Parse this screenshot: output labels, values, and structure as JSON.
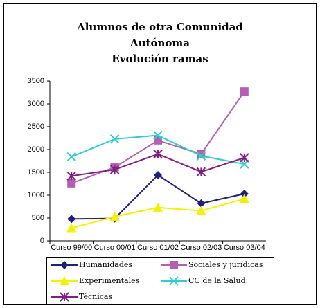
{
  "chart_data": {
    "type": "line",
    "title": [
      "Alumnos de otra Comunidad",
      "Autónoma",
      "Evolución ramas"
    ],
    "categories": [
      "Curso 99/00",
      "Curso 00/01",
      "Curso 01/02",
      "Curso 02/03",
      "Curso 03/04"
    ],
    "series": [
      {
        "name": "Humanidades",
        "color": "#1f1f7a",
        "marker": "diamond",
        "values": [
          480,
          490,
          1440,
          820,
          1030
        ]
      },
      {
        "name": "Sociales y jurídicas",
        "color": "#b35fb3",
        "marker": "square",
        "values": [
          1260,
          1610,
          2200,
          1900,
          3270
        ]
      },
      {
        "name": "Experimentales",
        "color": "#f2f200",
        "marker": "triangle",
        "values": [
          280,
          530,
          730,
          660,
          920
        ]
      },
      {
        "name": "CC de la Salud",
        "color": "#33cccc",
        "marker": "x",
        "values": [
          1840,
          2230,
          2310,
          1860,
          1680
        ]
      },
      {
        "name": "Técnicas",
        "color": "#7f1f7f",
        "marker": "star",
        "values": [
          1420,
          1560,
          1900,
          1510,
          1820
        ]
      }
    ],
    "ylim": [
      0,
      3500
    ],
    "yticks": [
      0,
      500,
      1000,
      1500,
      2000,
      2500,
      3000,
      3500
    ],
    "grid": false
  }
}
